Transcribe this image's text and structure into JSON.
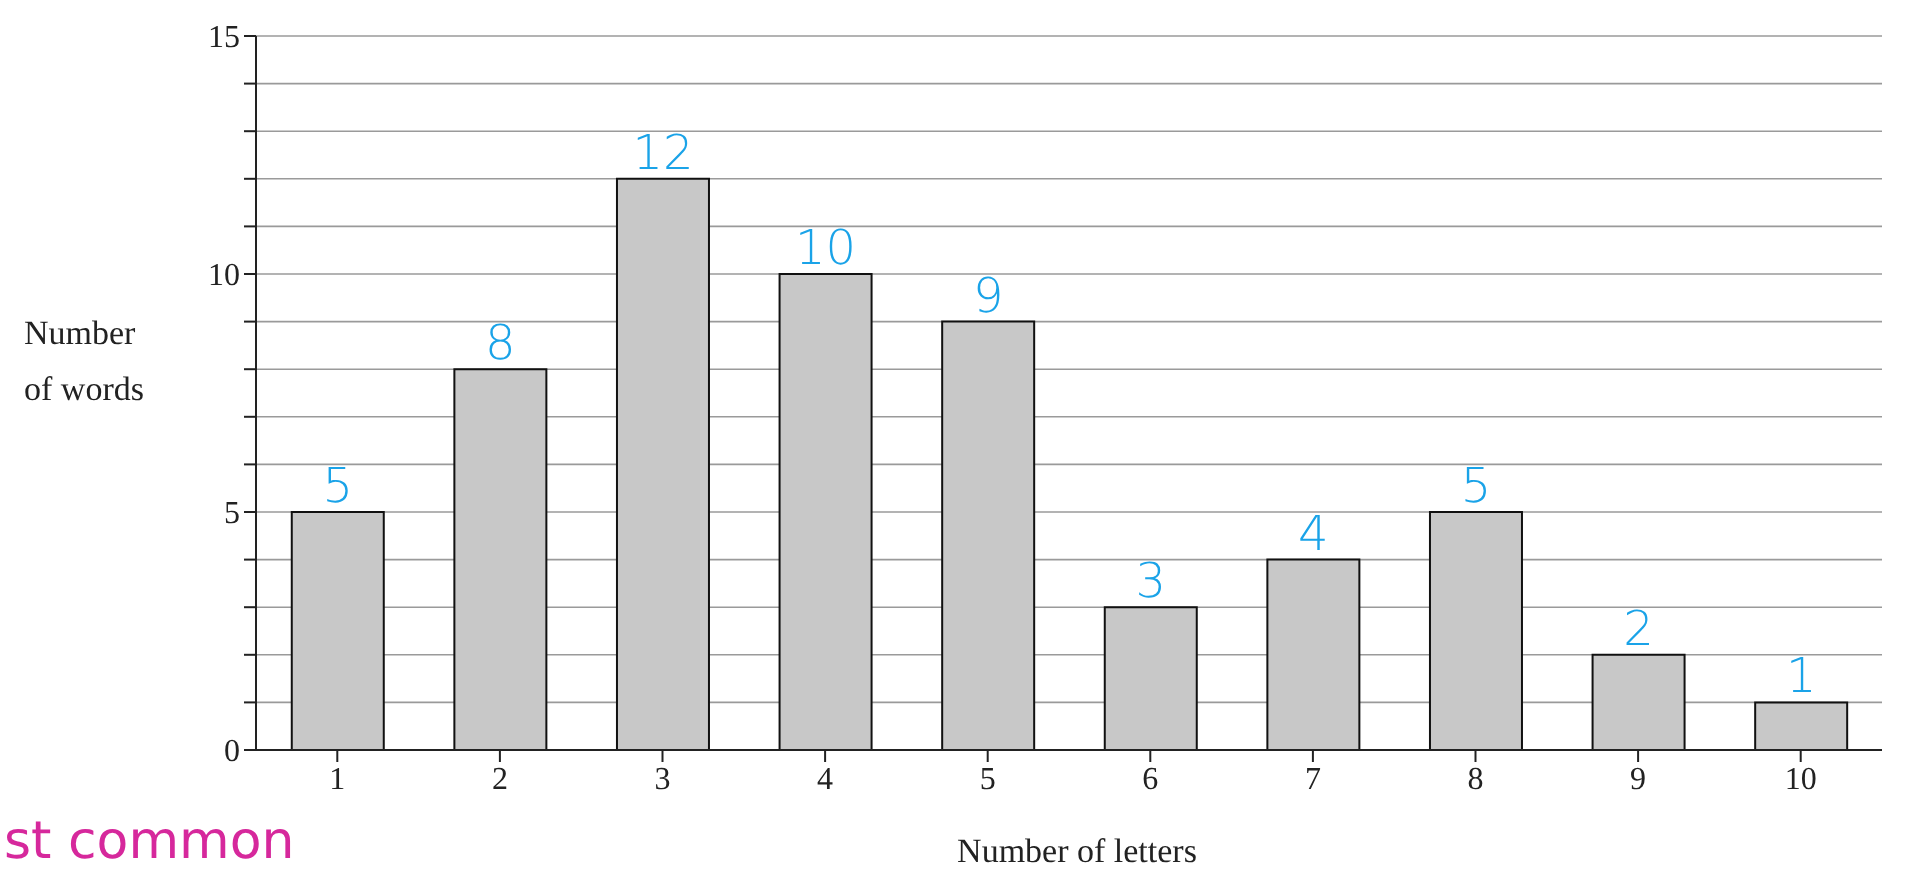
{
  "chart_data": {
    "type": "bar",
    "xlabel": "Number of letters",
    "ylabel": "Number of words",
    "categories": [
      "1",
      "2",
      "3",
      "4",
      "5",
      "6",
      "7",
      "8",
      "9",
      "10"
    ],
    "values": [
      5,
      8,
      12,
      10,
      9,
      3,
      4,
      5,
      2,
      1
    ],
    "color": "#c8c8c8",
    "data_labels": true,
    "ylim": [
      0,
      15
    ],
    "yticks": [
      0,
      {
        "value": 1,
        "label": null
      },
      {
        "value": 2,
        "label": null
      },
      {
        "value": 3,
        "label": null
      },
      {
        "value": 4,
        "label": null
      },
      5,
      {
        "value": 6,
        "label": null
      },
      {
        "value": 7,
        "label": null
      },
      {
        "value": 8,
        "label": null
      },
      {
        "value": 9,
        "label": null
      },
      10,
      {
        "value": 11,
        "label": null
      },
      {
        "value": 12,
        "label": null
      },
      {
        "value": 13,
        "label": null
      },
      {
        "value": 14,
        "label": null
      },
      15
    ],
    "grid": "y",
    "annotations": [
      "st common"
    ]
  }
}
